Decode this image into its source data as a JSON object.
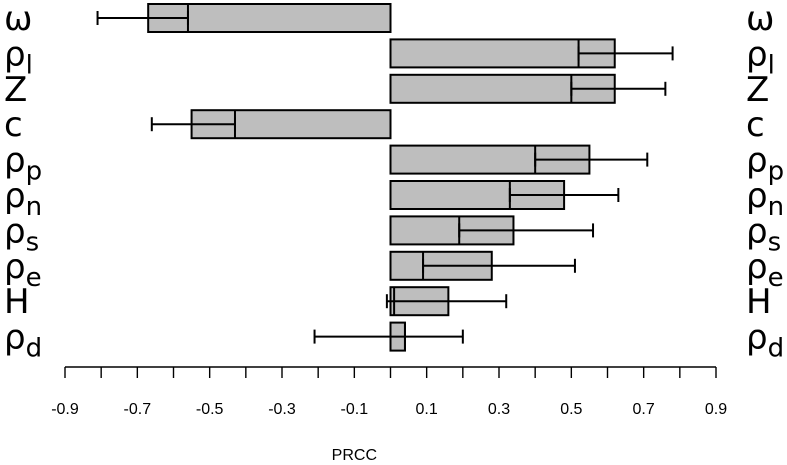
{
  "chart_data": {
    "type": "bar",
    "orientation": "horizontal",
    "xlabel": "PRCC",
    "xlim": [
      -0.9,
      0.9
    ],
    "x_ticks": [
      "-0.9",
      "-0.7",
      "-0.5",
      "-0.3",
      "-0.1",
      "0.1",
      "0.3",
      "0.5",
      "0.7",
      "0.9"
    ],
    "categories": [
      {
        "base": "ω",
        "sub": ""
      },
      {
        "base": "ρ",
        "sub": "l"
      },
      {
        "base": "Z",
        "sub": ""
      },
      {
        "base": "c",
        "sub": ""
      },
      {
        "base": "ρ",
        "sub": "p"
      },
      {
        "base": "ρ",
        "sub": "n"
      },
      {
        "base": "ρ",
        "sub": "s"
      },
      {
        "base": "ρ",
        "sub": "e"
      },
      {
        "base": "H",
        "sub": ""
      },
      {
        "base": "ρ",
        "sub": "d"
      }
    ],
    "values": [
      -0.67,
      0.62,
      0.62,
      -0.55,
      0.55,
      0.48,
      0.34,
      0.28,
      0.16,
      0.04
    ],
    "interval_low": [
      -0.81,
      0.52,
      0.5,
      -0.66,
      0.4,
      0.33,
      0.19,
      0.09,
      0.01,
      -0.21
    ],
    "interval_mid": [
      -0.56,
      0.52,
      0.5,
      -0.43,
      0.4,
      0.33,
      0.19,
      0.09,
      0.01,
      0.04
    ],
    "interval_high": [
      -0.56,
      0.78,
      0.76,
      -0.43,
      0.71,
      0.63,
      0.56,
      0.51,
      0.32,
      0.2
    ],
    "interval_min": [
      -0.81,
      0.52,
      0.5,
      -0.66,
      0.4,
      0.33,
      0.19,
      0.09,
      -0.01,
      -0.21
    ],
    "interval_max": [
      -0.56,
      0.78,
      0.76,
      -0.43,
      0.71,
      0.63,
      0.56,
      0.51,
      0.32,
      0.2
    ],
    "bar_color": "#bebebe",
    "grid": false,
    "labels_both_sides": true
  }
}
